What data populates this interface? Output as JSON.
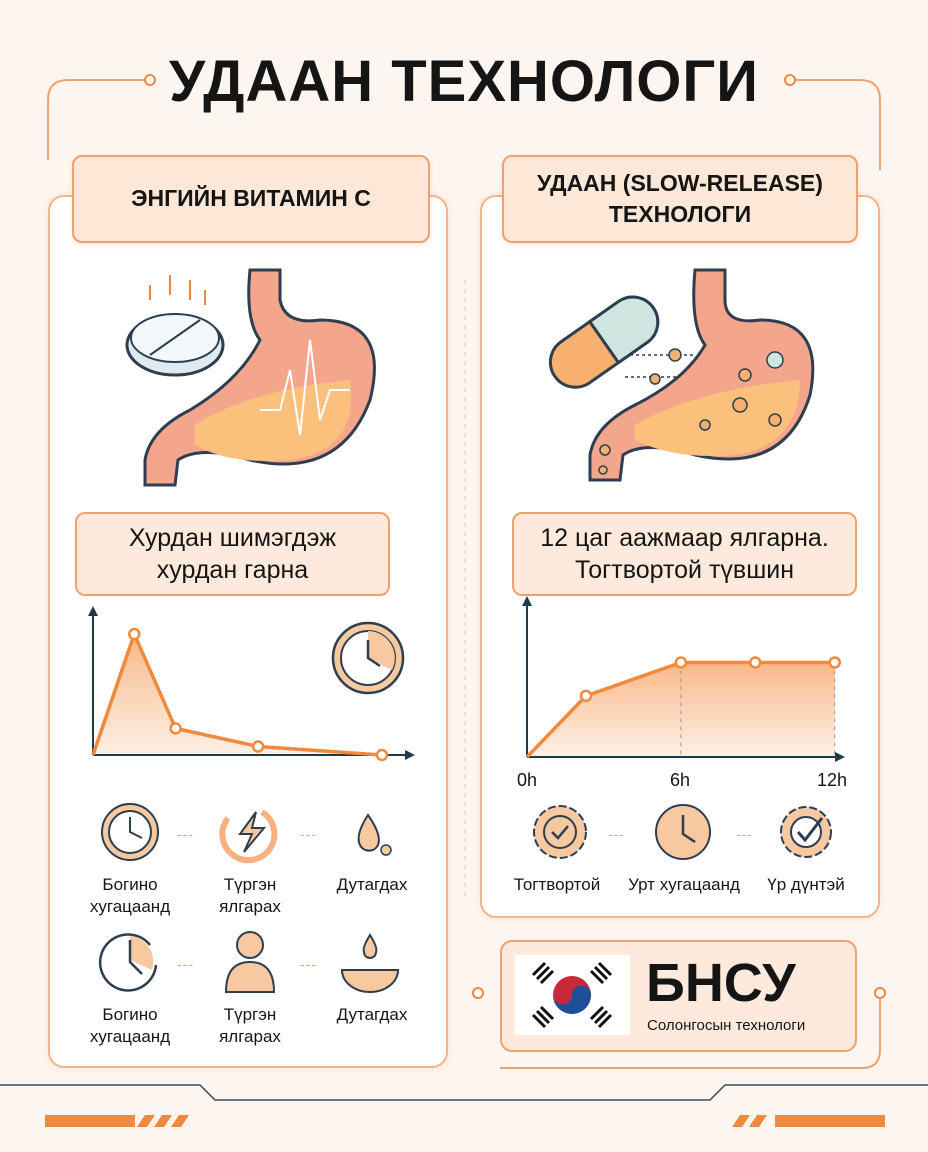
{
  "title": "УДААН ТЕХНОЛОГИ",
  "left": {
    "header": "ЭНГИЙН ВИТАМИН С",
    "subtitle_line1": "Хурдан шимэгдэж",
    "subtitle_line2": "хурдан гарна",
    "features_row1": [
      {
        "icon": "clock-icon",
        "line1": "Богино",
        "line2": "хугацаанд"
      },
      {
        "icon": "lightning-refresh-icon",
        "line1": "Түргэн",
        "line2": "ялгарах"
      },
      {
        "icon": "drop-icon",
        "line1": "Дутагдах",
        "line2": ""
      }
    ],
    "features_row2": [
      {
        "icon": "clock-cycle-icon",
        "line1": "Богино",
        "line2": "хугацаанд"
      },
      {
        "icon": "person-icon",
        "line1": "Түргэн",
        "line2": "ялгарах"
      },
      {
        "icon": "hands-drop-icon",
        "line1": "Дутагдах",
        "line2": ""
      }
    ]
  },
  "right": {
    "header_line1": "УДААН (SLOW-RELEASE)",
    "header_line2": "ТЕХНОЛОГИ",
    "subtitle_line1": "12 цаг аажмаар ялгарна.",
    "subtitle_line2": "Тогтвортой түвшин",
    "features": [
      {
        "icon": "badge-check-icon",
        "label": "Тогтвортой"
      },
      {
        "icon": "clock-icon",
        "label": "Урт хугацаанд"
      },
      {
        "icon": "gear-check-icon",
        "label": "Үр дүнтэй"
      }
    ]
  },
  "brand": {
    "name": "БНСУ",
    "tagline": "Солонгосын технологи",
    "flag": "south-korea-flag"
  },
  "colors": {
    "accent": "#f0883e",
    "fill": "#f8c9a0",
    "border": "#f0a070",
    "axis": "#1f3a4d"
  },
  "chart_data": [
    {
      "type": "area",
      "title": "",
      "xlabel": "",
      "ylabel": "",
      "x": [
        0,
        1,
        2,
        4,
        7
      ],
      "y": [
        0,
        100,
        22,
        7,
        0
      ],
      "xlim": [
        0,
        7.8
      ],
      "ylim": [
        0,
        105
      ]
    },
    {
      "type": "area",
      "title": "",
      "xlabel": "",
      "ylabel": "",
      "x": [
        0,
        2.3,
        6,
        8.9,
        12
      ],
      "y": [
        0,
        44,
        68,
        68,
        68
      ],
      "xlim": [
        0,
        12.4
      ],
      "ylim": [
        0,
        100
      ],
      "x_ticks": [
        "0h",
        "6h",
        "12h"
      ],
      "x_tick_values": [
        0,
        6,
        12
      ]
    }
  ]
}
